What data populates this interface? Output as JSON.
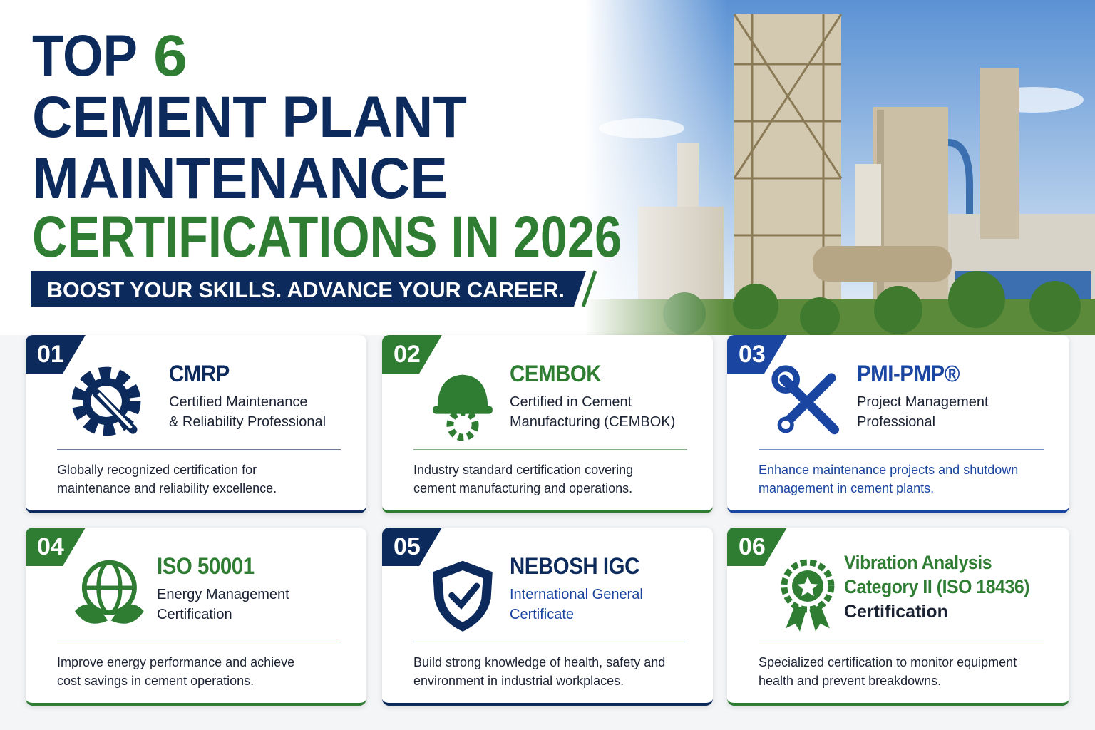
{
  "header": {
    "title": [
      "TOP",
      "6",
      "CEMENT PLANT",
      "MAINTENANCE",
      "CERTIFICATIONS IN 2026"
    ],
    "tagline": "BOOST YOUR SKILLS. ADVANCE YOUR CAREER."
  },
  "cards": [
    {
      "number": "01",
      "title": [
        "CMRP"
      ],
      "subtitle": [
        "Certified Maintenance",
        "& Reliability Professional"
      ],
      "description": [
        "Globally recognized certification for",
        "maintenance and reliability excellence."
      ]
    },
    {
      "number": "02",
      "title": [
        "CEMBOK"
      ],
      "subtitle": [
        "Certified in Cement",
        "Manufacturing (CEMBOK)"
      ],
      "description": [
        "Industry standard certification covering",
        "cement manufacturing and operations."
      ]
    },
    {
      "number": "03",
      "title": [
        "PMI-PMP®"
      ],
      "subtitle": [
        "Project Management",
        "Professional"
      ],
      "description": [
        "Enhance maintenance projects and shutdown",
        "management in cement plants."
      ]
    },
    {
      "number": "04",
      "title": [
        "ISO 50001"
      ],
      "subtitle": [
        "Energy Management",
        "Certification"
      ],
      "description": [
        "Improve energy performance and achieve",
        "cost savings in cement operations."
      ]
    },
    {
      "number": "05",
      "title": [
        "NEBOSH IGC"
      ],
      "subtitle": [
        "International General",
        "Certificate"
      ],
      "description": [
        "Build strong knowledge of health, safety and",
        "environment in industrial workplaces."
      ]
    },
    {
      "number": "06",
      "title": [
        "Vibration Analysis",
        "Category II (ISO 18436)"
      ],
      "subtitle": [
        "Certification"
      ],
      "description": [
        "Specialized certification to monitor equipment",
        "health and prevent breakdowns."
      ]
    }
  ]
}
